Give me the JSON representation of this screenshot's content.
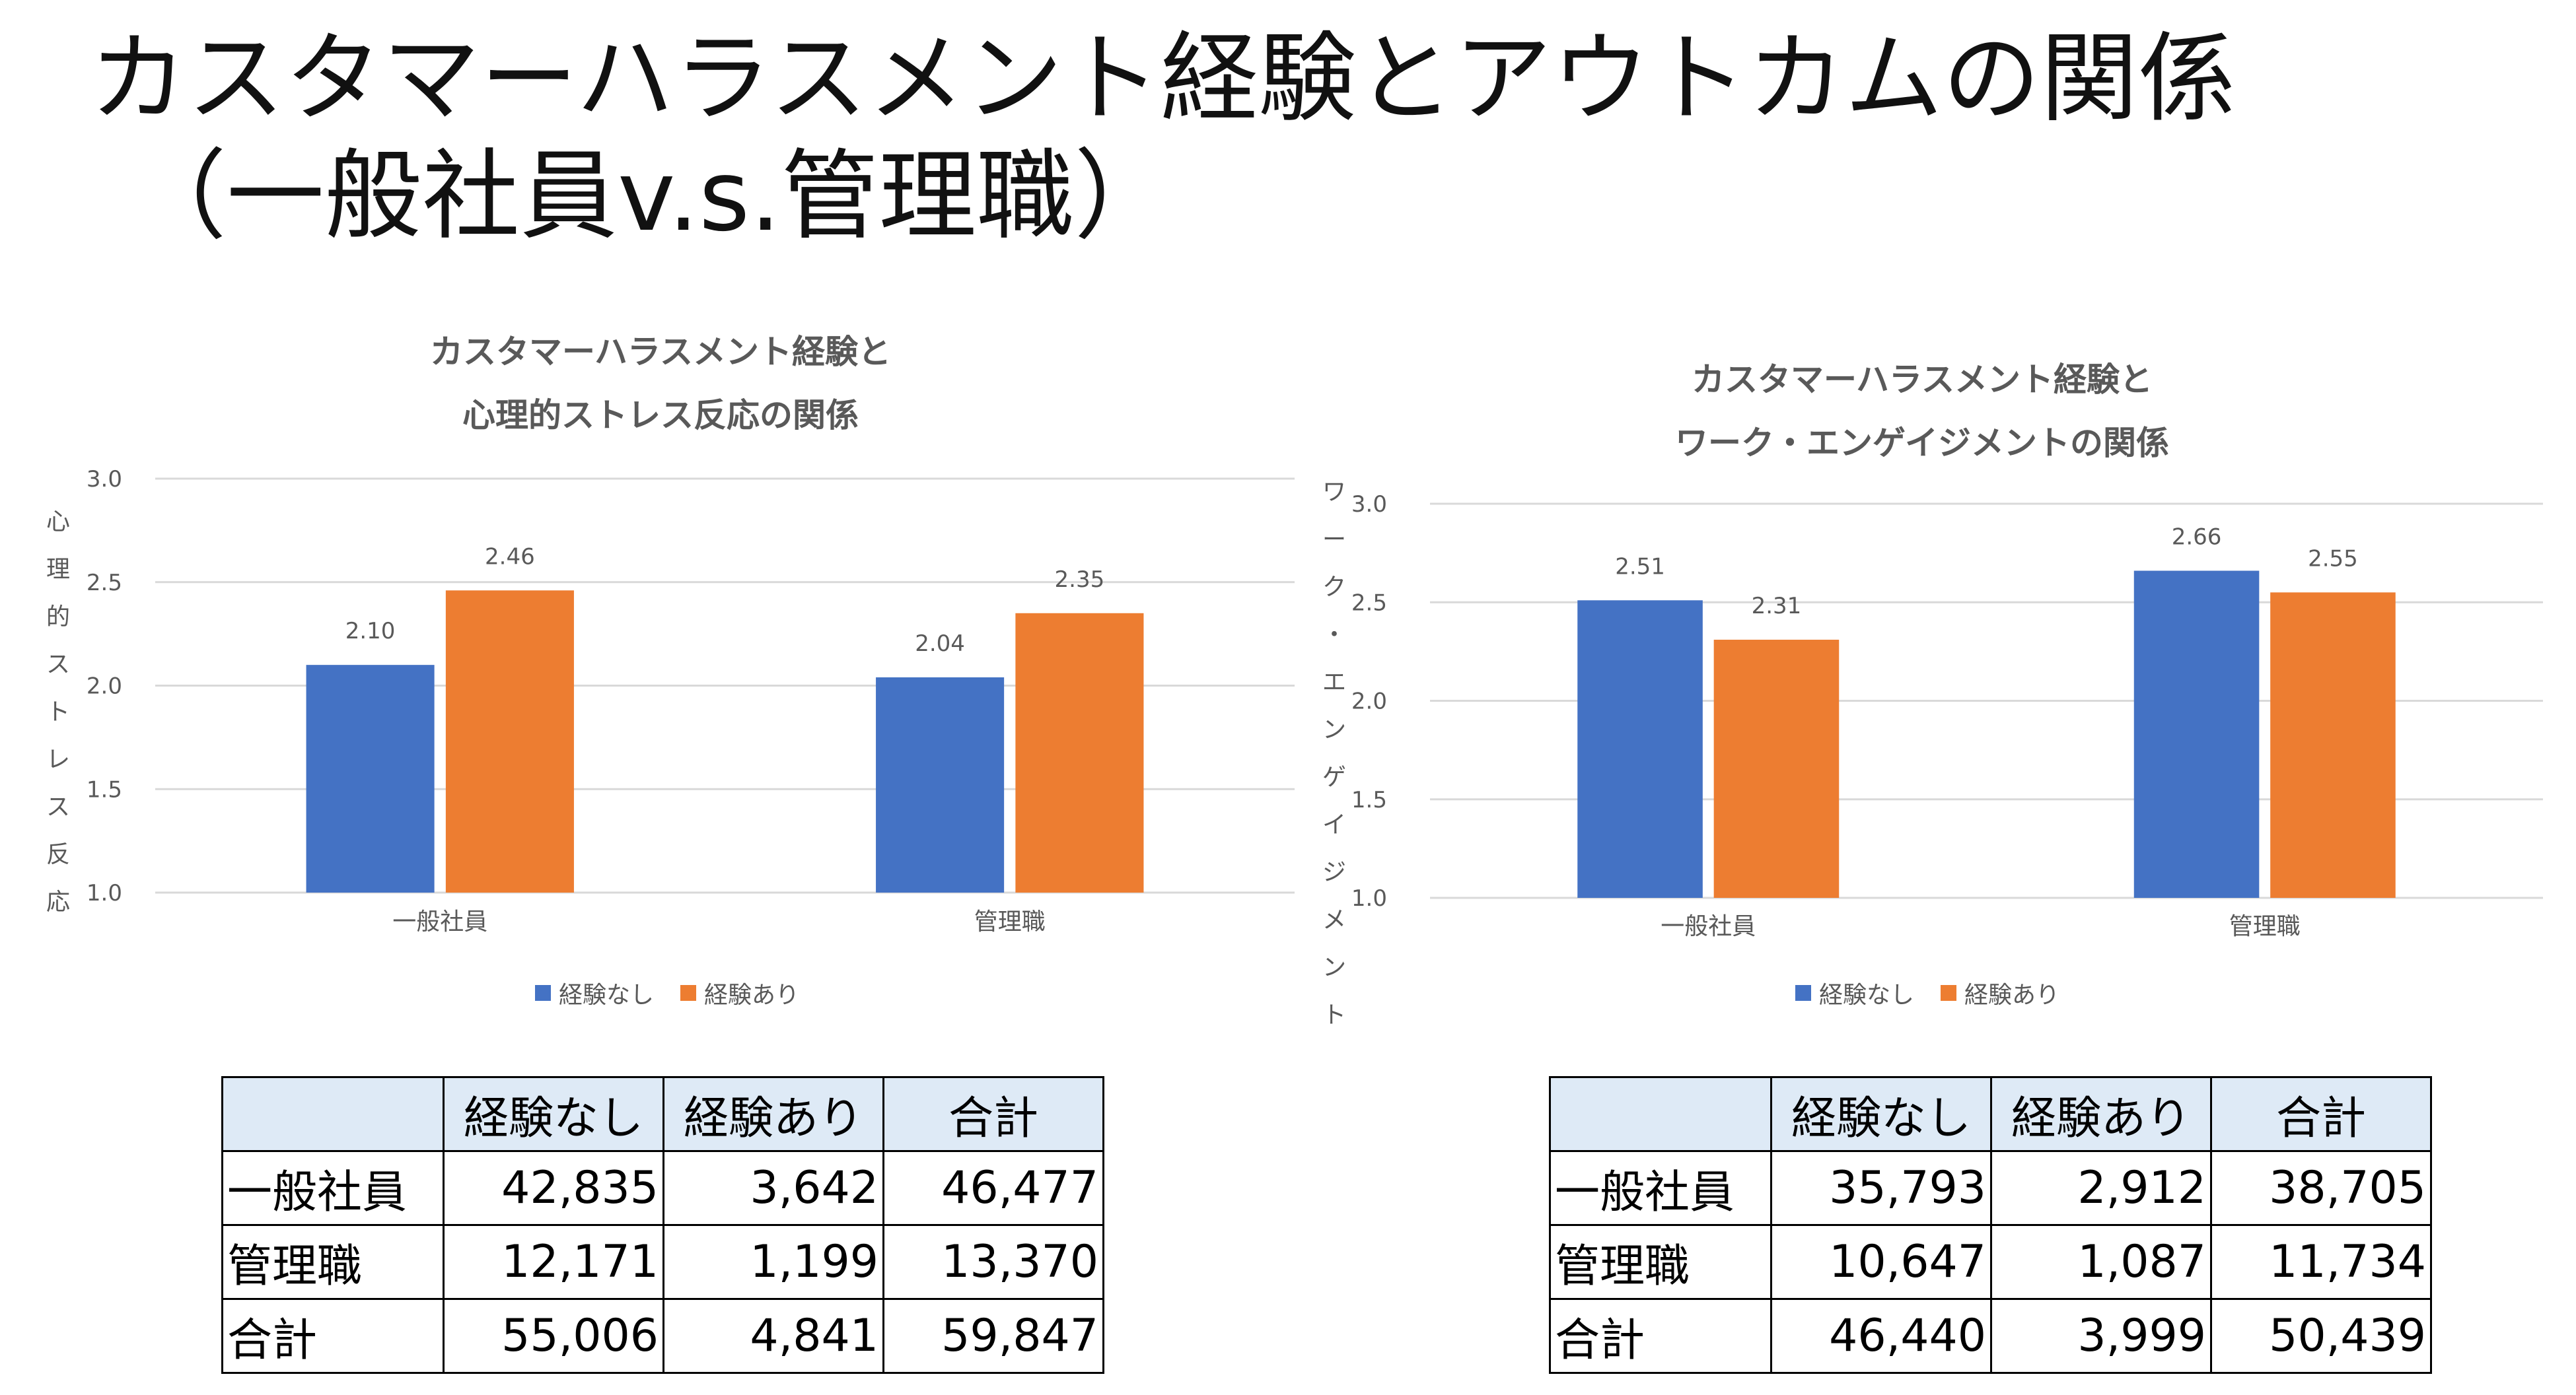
{
  "slide": {
    "title_line1": "カスタマーハラスメント経験とアウトカムの関係",
    "title_line2": "（一般社員v.s.管理職）"
  },
  "colors": {
    "no_experience": "#4472C4",
    "experience": "#ED7D31",
    "grid": "#D9D9D9",
    "text": "#595959"
  },
  "charts": [
    {
      "title_line1": "カスタマーハラスメント経験と",
      "title_line2": "心理的ストレス反応の関係",
      "ylabel_chars": [
        "心",
        "理",
        "的",
        "ス",
        "ト",
        "レ",
        "ス",
        "反",
        "応"
      ],
      "legend": [
        "経験なし",
        "経験あり"
      ]
    },
    {
      "title_line1": "カスタマーハラスメント経験と",
      "title_line2": "ワーク・エンゲイジメントの関係",
      "ylabel_chars": [
        "ワ",
        "ー",
        "ク",
        "・",
        "エ",
        "ン",
        "ゲ",
        "イ",
        "ジ",
        "メ",
        "ン",
        "ト"
      ],
      "legend": [
        "経験なし",
        "経験あり"
      ]
    }
  ],
  "chart_data": [
    {
      "type": "bar",
      "title": "カスタマーハラスメント経験と心理的ストレス反応の関係",
      "ylabel": "心理的ストレス反応",
      "categories": [
        "一般社員",
        "管理職"
      ],
      "series": [
        {
          "name": "経験なし",
          "values": [
            2.1,
            2.04
          ]
        },
        {
          "name": "経験あり",
          "values": [
            2.46,
            2.35
          ]
        }
      ],
      "ylim": [
        1.0,
        3.0
      ],
      "yticks": [
        "1.0",
        "1.5",
        "2.0",
        "2.5",
        "3.0"
      ],
      "value_labels": [
        [
          "2.10",
          "2.04"
        ],
        [
          "2.46",
          "2.35"
        ]
      ],
      "grid": true,
      "legend_position": "bottom"
    },
    {
      "type": "bar",
      "title": "カスタマーハラスメント経験とワーク・エンゲイジメントの関係",
      "ylabel": "ワーク・エンゲイジメント",
      "categories": [
        "一般社員",
        "管理職"
      ],
      "series": [
        {
          "name": "経験なし",
          "values": [
            2.51,
            2.66
          ]
        },
        {
          "name": "経験あり",
          "values": [
            2.31,
            2.55
          ]
        }
      ],
      "ylim": [
        1.0,
        3.0
      ],
      "yticks": [
        "1.0",
        "1.5",
        "2.0",
        "2.5",
        "3.0"
      ],
      "value_labels": [
        [
          "2.51",
          "2.66"
        ],
        [
          "2.31",
          "2.55"
        ]
      ],
      "grid": true,
      "legend_position": "bottom"
    },
    {
      "type": "table",
      "headers": [
        "",
        "経験なし",
        "経験あり",
        "合計"
      ],
      "rows": [
        [
          "一般社員",
          "42,835",
          "3,642",
          "46,477"
        ],
        [
          "管理職",
          "12,171",
          "1,199",
          "13,370"
        ],
        [
          "合計",
          "55,006",
          "4,841",
          "59,847"
        ]
      ]
    },
    {
      "type": "table",
      "headers": [
        "",
        "経験なし",
        "経験あり",
        "合計"
      ],
      "rows": [
        [
          "一般社員",
          "35,793",
          "2,912",
          "38,705"
        ],
        [
          "管理職",
          "10,647",
          "1,087",
          "11,734"
        ],
        [
          "合計",
          "46,440",
          "3,999",
          "50,439"
        ]
      ]
    }
  ]
}
